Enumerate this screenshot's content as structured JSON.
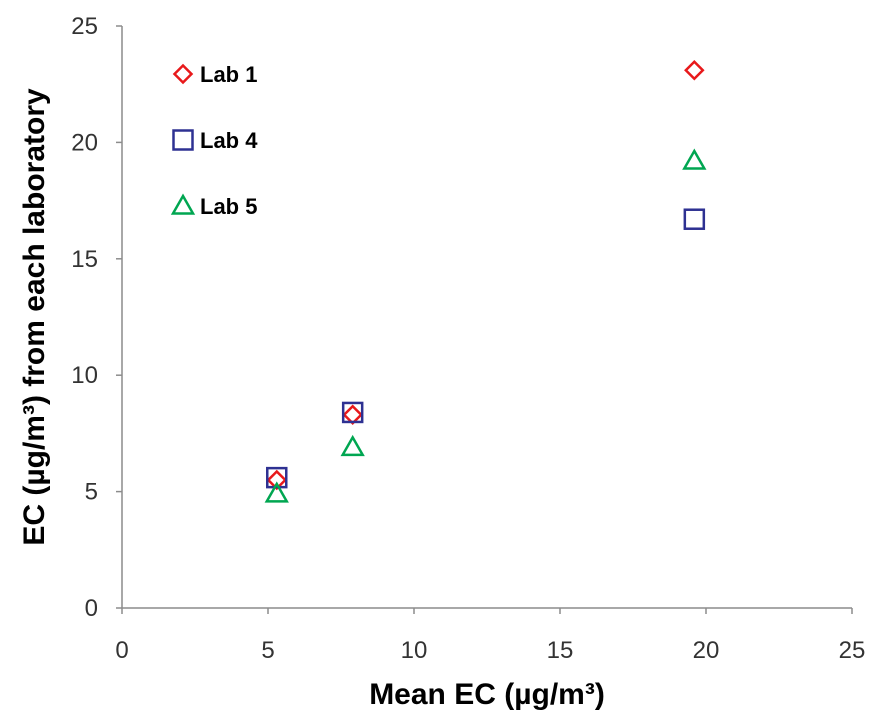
{
  "chart_data": {
    "type": "scatter",
    "title": "",
    "xlabel": "Mean EC (µg/m³)",
    "ylabel": "EC (µg/m³) from each laboratory",
    "xlim": [
      0,
      25
    ],
    "ylim": [
      0,
      25
    ],
    "x_ticks": [
      0,
      5,
      10,
      15,
      20,
      25
    ],
    "y_ticks": [
      0,
      5,
      10,
      15,
      20,
      25
    ],
    "grid": false,
    "legend_position": "top-left",
    "series": [
      {
        "name": "Lab 1",
        "marker": "diamond",
        "color": "#e8191b",
        "points": [
          [
            5.3,
            5.5
          ],
          [
            7.9,
            8.3
          ],
          [
            19.6,
            23.1
          ]
        ]
      },
      {
        "name": "Lab 4",
        "marker": "square",
        "color": "#2e3192",
        "points": [
          [
            5.3,
            5.6
          ],
          [
            7.9,
            8.4
          ],
          [
            19.6,
            16.7
          ]
        ]
      },
      {
        "name": "Lab 5",
        "marker": "triangle",
        "color": "#00a651",
        "points": [
          [
            5.3,
            4.9
          ],
          [
            7.9,
            6.9
          ],
          [
            19.6,
            19.2
          ]
        ]
      }
    ]
  }
}
